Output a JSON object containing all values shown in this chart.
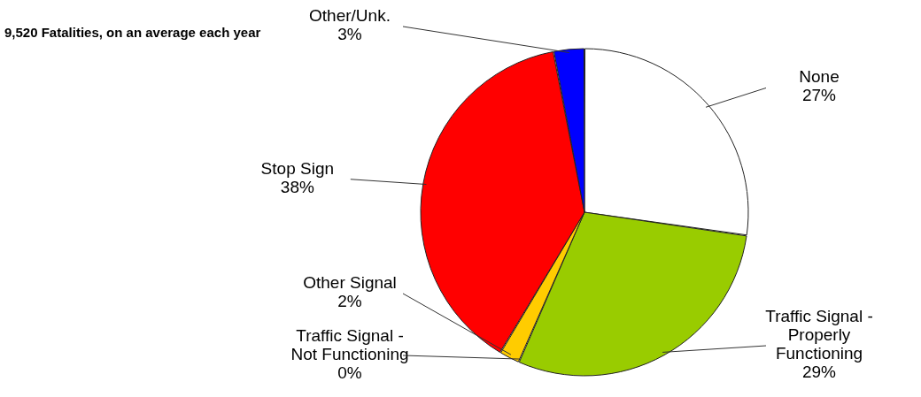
{
  "chart_data": {
    "type": "pie",
    "title": "9,520 Fatalities, on an average each year",
    "categories": [
      "None",
      "Traffic Signal - Properly Functioning",
      "Traffic Signal - Not Functioning",
      "Other Signal",
      "Stop Sign",
      "Other/Unk."
    ],
    "values": [
      27,
      29,
      0,
      2,
      38,
      3
    ],
    "value_labels": [
      "27%",
      "29%",
      "0%",
      "2%",
      "38%",
      "3%"
    ],
    "colors": [
      "#ffffff",
      "#99cc00",
      "#333333",
      "#ffcc00",
      "#ff0000",
      "#0000ff"
    ],
    "legend": false
  }
}
